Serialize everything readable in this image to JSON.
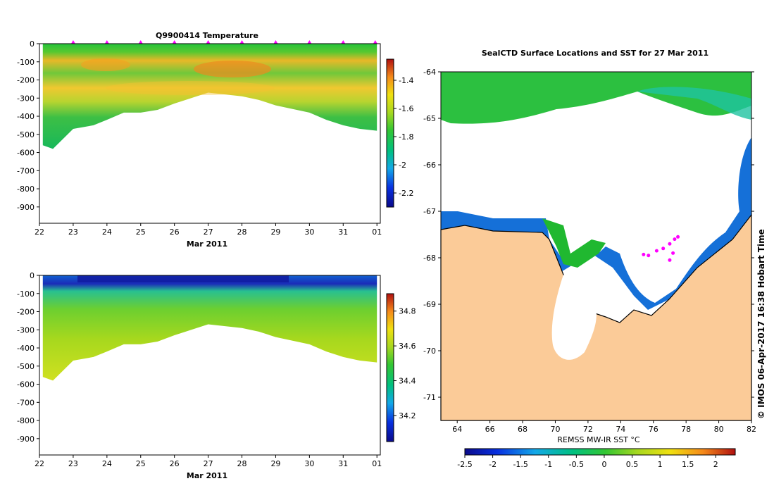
{
  "chart_data": [
    {
      "type": "heatmap",
      "title": "Q9900414  Temperature",
      "xlabel": "Mar 2011",
      "ylabel": "",
      "x_ticks": [
        "22",
        "23",
        "24",
        "25",
        "26",
        "27",
        "28",
        "29",
        "30",
        "31",
        "01"
      ],
      "xlim": [
        22,
        32.1
      ],
      "ylim": [
        -990,
        0
      ],
      "y_ticks": [
        "0",
        "-100",
        "-200",
        "-300",
        "-400",
        "-500",
        "-600",
        "-700",
        "-800",
        "-900"
      ],
      "y_tick_values": [
        0,
        -100,
        -200,
        -300,
        -400,
        -500,
        -600,
        -700,
        -800,
        -900
      ],
      "profile_markers_day": [
        23.0,
        24.0,
        25.0,
        26.0,
        27.0,
        28.0,
        29.0,
        30.0,
        31.0,
        31.95
      ],
      "profile_depths": [
        {
          "day": 22.1,
          "depth": -560
        },
        {
          "day": 22.4,
          "depth": -580
        },
        {
          "day": 23.0,
          "depth": -470
        },
        {
          "day": 23.6,
          "depth": -450
        },
        {
          "day": 24.0,
          "depth": -420
        },
        {
          "day": 24.5,
          "depth": -380
        },
        {
          "day": 25.0,
          "depth": -380
        },
        {
          "day": 25.5,
          "depth": -365
        },
        {
          "day": 26.0,
          "depth": -330
        },
        {
          "day": 26.5,
          "depth": -300
        },
        {
          "day": 27.0,
          "depth": -270
        },
        {
          "day": 27.5,
          "depth": -280
        },
        {
          "day": 28.0,
          "depth": -290
        },
        {
          "day": 28.5,
          "depth": -310
        },
        {
          "day": 29.0,
          "depth": -340
        },
        {
          "day": 29.5,
          "depth": -360
        },
        {
          "day": 30.0,
          "depth": -380
        },
        {
          "day": 30.5,
          "depth": -420
        },
        {
          "day": 31.0,
          "depth": -450
        },
        {
          "day": 31.5,
          "depth": -470
        },
        {
          "day": 32.0,
          "depth": -480
        }
      ],
      "colorbar": {
        "ticks": [
          "-1.4",
          "-1.6",
          "-1.8",
          "-2",
          "-2.2"
        ],
        "tick_values": [
          -1.4,
          -1.6,
          -1.8,
          -2.0,
          -2.2
        ],
        "range": [
          -2.3,
          -1.25
        ]
      }
    },
    {
      "type": "heatmap",
      "title": "",
      "xlabel": "Mar 2011",
      "ylabel": "",
      "x_ticks": [
        "22",
        "23",
        "24",
        "25",
        "26",
        "27",
        "28",
        "29",
        "30",
        "31",
        "01"
      ],
      "xlim": [
        22,
        32.1
      ],
      "ylim": [
        -990,
        0
      ],
      "y_ticks": [
        "0",
        "-100",
        "-200",
        "-300",
        "-400",
        "-500",
        "-600",
        "-700",
        "-800",
        "-900"
      ],
      "y_tick_values": [
        0,
        -100,
        -200,
        -300,
        -400,
        -500,
        -600,
        -700,
        -800,
        -900
      ],
      "colorbar": {
        "ticks": [
          "34.8",
          "34.6",
          "34.4",
          "34.2"
        ],
        "tick_values": [
          34.8,
          34.6,
          34.4,
          34.2
        ],
        "range": [
          34.05,
          34.9
        ]
      }
    },
    {
      "type": "map",
      "title": "SealCTD Surface Locations and SST for 27 Mar 2011",
      "xlabel": "REMSS MW-IR SST °C",
      "x_ticks": [
        "64",
        "66",
        "68",
        "70",
        "72",
        "74",
        "76",
        "78",
        "80",
        "82"
      ],
      "x_tick_values": [
        64,
        66,
        68,
        70,
        72,
        74,
        76,
        78,
        80,
        82
      ],
      "xlim": [
        63,
        82
      ],
      "ylim": [
        -71.5,
        -64
      ],
      "y_ticks": [
        "-64",
        "-65",
        "-66",
        "-67",
        "-68",
        "-69",
        "-70",
        "-71"
      ],
      "y_tick_values": [
        -64,
        -65,
        -66,
        -67,
        -68,
        -69,
        -70,
        -71
      ],
      "seal_locations": [
        {
          "lon": 75.4,
          "lat": -67.93
        },
        {
          "lon": 75.7,
          "lat": -67.95
        },
        {
          "lon": 76.2,
          "lat": -67.85
        },
        {
          "lon": 76.6,
          "lat": -67.8
        },
        {
          "lon": 77.0,
          "lat": -67.7
        },
        {
          "lon": 77.3,
          "lat": -67.6
        },
        {
          "lon": 77.5,
          "lat": -67.55
        },
        {
          "lon": 77.2,
          "lat": -67.9
        },
        {
          "lon": 77.0,
          "lat": -68.05
        }
      ],
      "colorbar": {
        "ticks": [
          "-2.5",
          "-2",
          "-1.5",
          "-1",
          "-0.5",
          "0",
          "0.5",
          "1",
          "1.5",
          "2"
        ],
        "tick_values": [
          -2.5,
          -2,
          -1.5,
          -1,
          -0.5,
          0,
          0.5,
          1,
          1.5,
          2
        ],
        "range": [
          -2.5,
          2.35
        ]
      }
    }
  ],
  "credit": "©  IMOS 06-Apr-2017 16:38 Hobart Time",
  "colors": {
    "land": "#fbcb98",
    "coast": "#000000",
    "marker": "#ff00ff"
  }
}
